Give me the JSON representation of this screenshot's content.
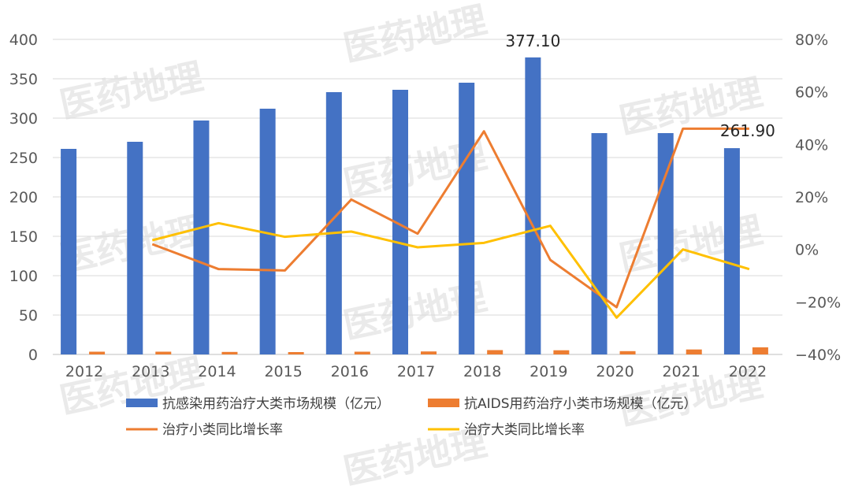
{
  "watermark": "医药地理",
  "chart_data": {
    "type": "bar",
    "categories": [
      "2012",
      "2013",
      "2014",
      "2015",
      "2016",
      "2017",
      "2018",
      "2019",
      "2020",
      "2021",
      "2022"
    ],
    "series": [
      {
        "name": "抗感染用药治疗大类市场规模（亿元）",
        "type": "bar",
        "axis": "left",
        "color": "#4472c4",
        "values": [
          261,
          270,
          297,
          312,
          333,
          336,
          345,
          377.1,
          281,
          281,
          261.9
        ]
      },
      {
        "name": "抗AIDS用药治疗小类市场规模（亿元）",
        "type": "bar",
        "axis": "left",
        "color": "#ed7d31",
        "values": [
          3.5,
          3.5,
          3.2,
          3.0,
          3.5,
          3.8,
          5.5,
          5.3,
          4.2,
          6.3,
          9.0
        ]
      },
      {
        "name": "治疗小类同比增长率",
        "type": "line",
        "axis": "right",
        "color": "#ed7d31",
        "values": [
          null,
          2,
          -7.5,
          -8,
          19,
          6,
          45,
          -4,
          -22,
          46,
          46
        ]
      },
      {
        "name": "治疗大类同比增长率",
        "type": "line",
        "axis": "right",
        "color": "#ffc000",
        "values": [
          null,
          3.5,
          10,
          4.8,
          6.8,
          0.8,
          2.5,
          9,
          -26,
          0,
          -7.5
        ]
      }
    ],
    "data_labels": [
      "377.10",
      "261.90"
    ],
    "y_left": {
      "min": 0,
      "max": 400,
      "step": 50,
      "ticks": [
        "0",
        "50",
        "100",
        "150",
        "200",
        "250",
        "300",
        "350",
        "400"
      ]
    },
    "y_right": {
      "min": -40,
      "max": 80,
      "step": 20,
      "ticks": [
        "−40%",
        "−20%",
        "0%",
        "20%",
        "40%",
        "60%",
        "80%"
      ]
    },
    "grid": true,
    "legend_position": "bottom"
  }
}
